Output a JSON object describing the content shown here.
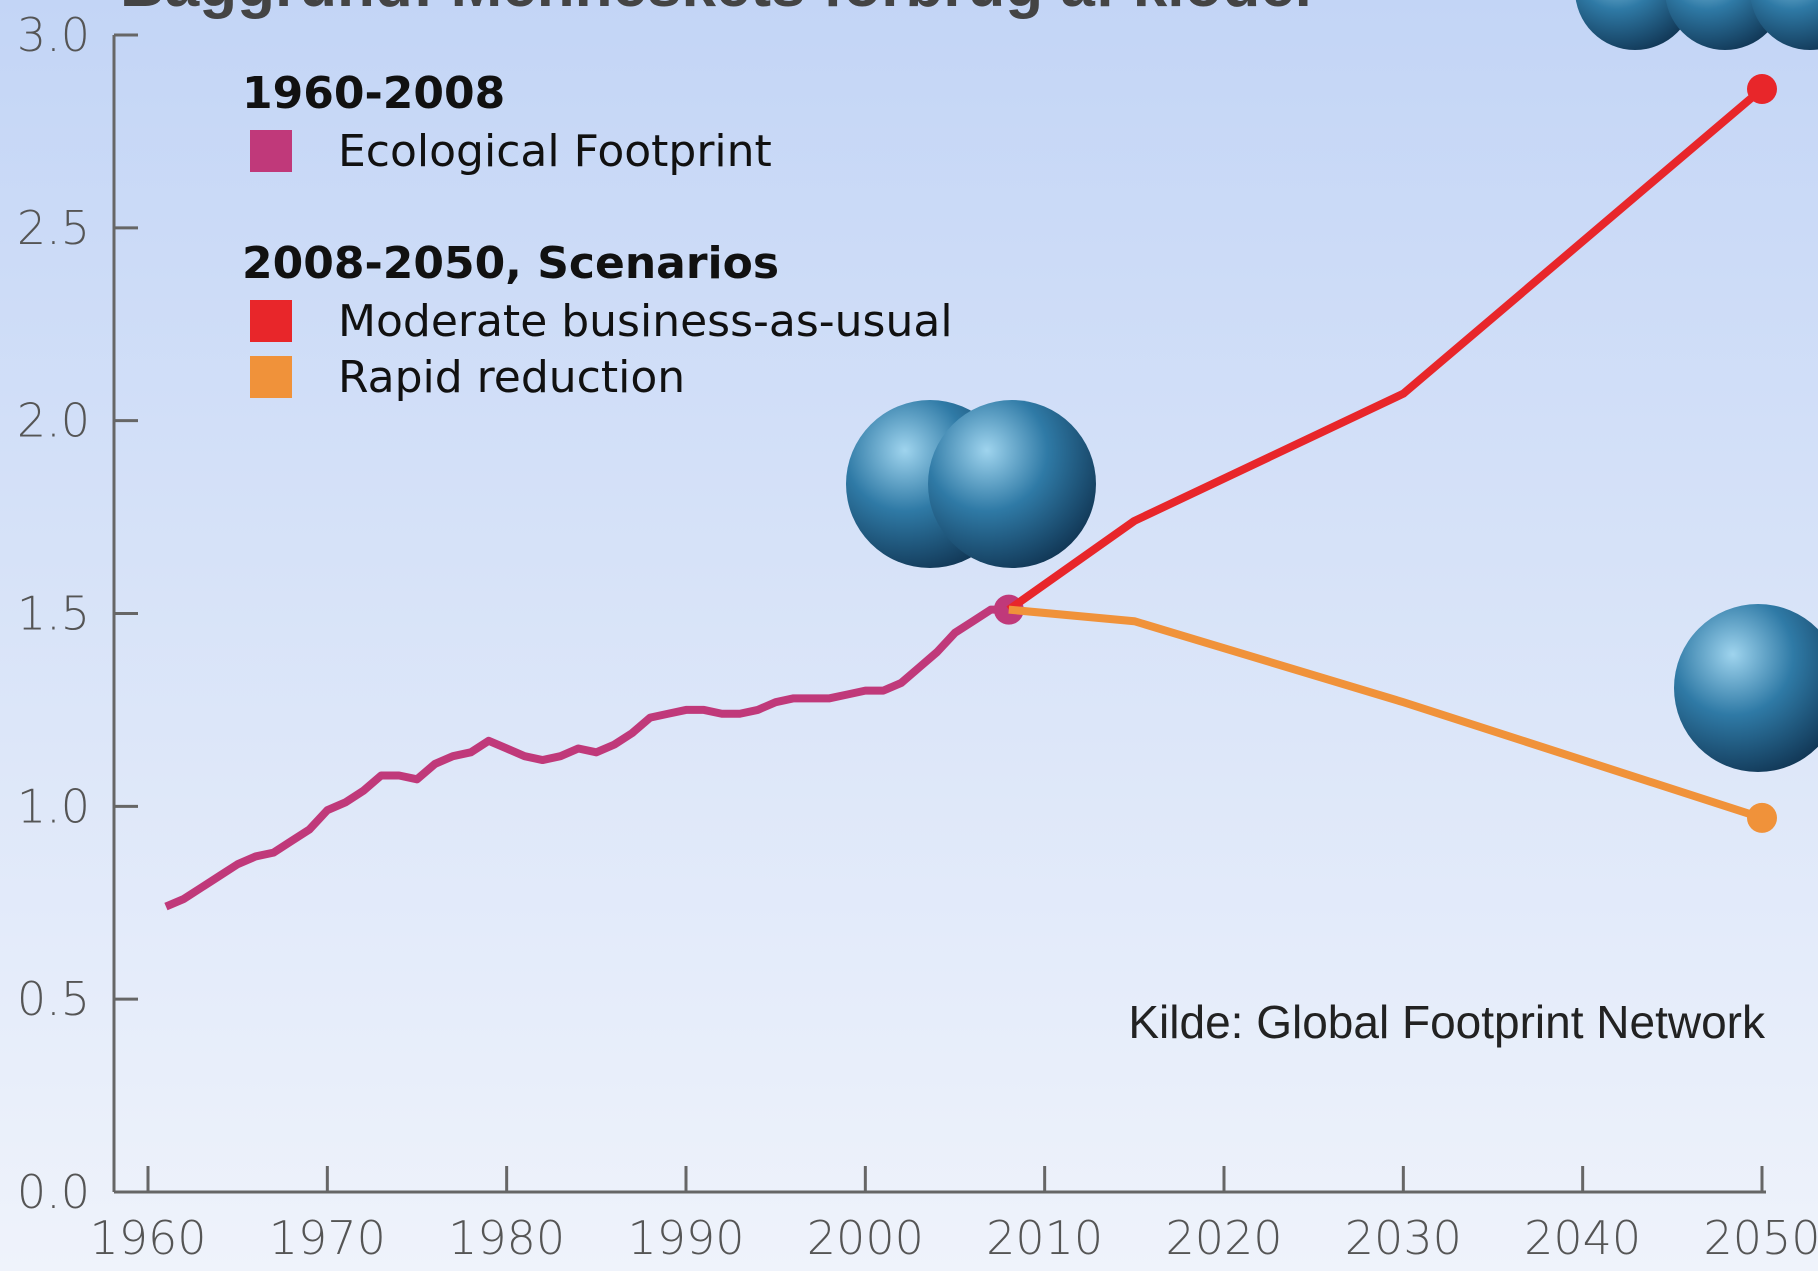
{
  "chart_data": {
    "type": "line",
    "title": "Baggrund: Menneskets forbrug af kloder",
    "source": "Kilde: Global Footprint Network",
    "legend_titles": [
      "1960-2008",
      "2008-2050, Scenarios"
    ],
    "xlim": [
      1960,
      2050
    ],
    "xticks": [
      1960,
      1970,
      1980,
      1990,
      2000,
      2010,
      2020,
      2030,
      2040,
      2050
    ],
    "ylim": [
      0,
      3
    ],
    "yticks": [
      {
        "value": 0,
        "label": "0.0"
      },
      0.5,
      {
        "value": 1,
        "label": "1.0"
      },
      1.5,
      {
        "value": 2,
        "label": "2.0"
      },
      2.5,
      {
        "value": 3,
        "label": "3.0"
      }
    ],
    "series": [
      {
        "name": "Ecological Footprint",
        "color": "#c0397a",
        "legend_group": 0,
        "x": [
          1961,
          1962,
          1963,
          1964,
          1965,
          1966,
          1967,
          1968,
          1969,
          1970,
          1971,
          1972,
          1973,
          1974,
          1975,
          1976,
          1977,
          1978,
          1979,
          1980,
          1981,
          1982,
          1983,
          1984,
          1985,
          1986,
          1987,
          1988,
          1989,
          1990,
          1991,
          1992,
          1993,
          1994,
          1995,
          1996,
          1997,
          1998,
          1999,
          2000,
          2001,
          2002,
          2003,
          2004,
          2005,
          2006,
          2007,
          2008
        ],
        "values": [
          0.74,
          0.76,
          0.79,
          0.82,
          0.85,
          0.87,
          0.88,
          0.91,
          0.94,
          0.99,
          1.01,
          1.04,
          1.08,
          1.08,
          1.07,
          1.11,
          1.13,
          1.14,
          1.17,
          1.15,
          1.13,
          1.12,
          1.13,
          1.15,
          1.14,
          1.16,
          1.19,
          1.23,
          1.24,
          1.25,
          1.25,
          1.24,
          1.24,
          1.25,
          1.27,
          1.28,
          1.28,
          1.28,
          1.29,
          1.3,
          1.3,
          1.32,
          1.36,
          1.4,
          1.45,
          1.48,
          1.51,
          1.51
        ]
      },
      {
        "name": "Moderate business-as-usual",
        "color": "#e8262a",
        "legend_group": 1,
        "x": [
          2008,
          2015,
          2030,
          2050
        ],
        "values": [
          1.51,
          1.74,
          2.07,
          2.86
        ]
      },
      {
        "name": "Rapid reduction",
        "color": "#f0923a",
        "legend_group": 1,
        "x": [
          2008,
          2015,
          2030,
          2050
        ],
        "values": [
          1.51,
          1.48,
          1.27,
          0.97
        ]
      }
    ]
  }
}
